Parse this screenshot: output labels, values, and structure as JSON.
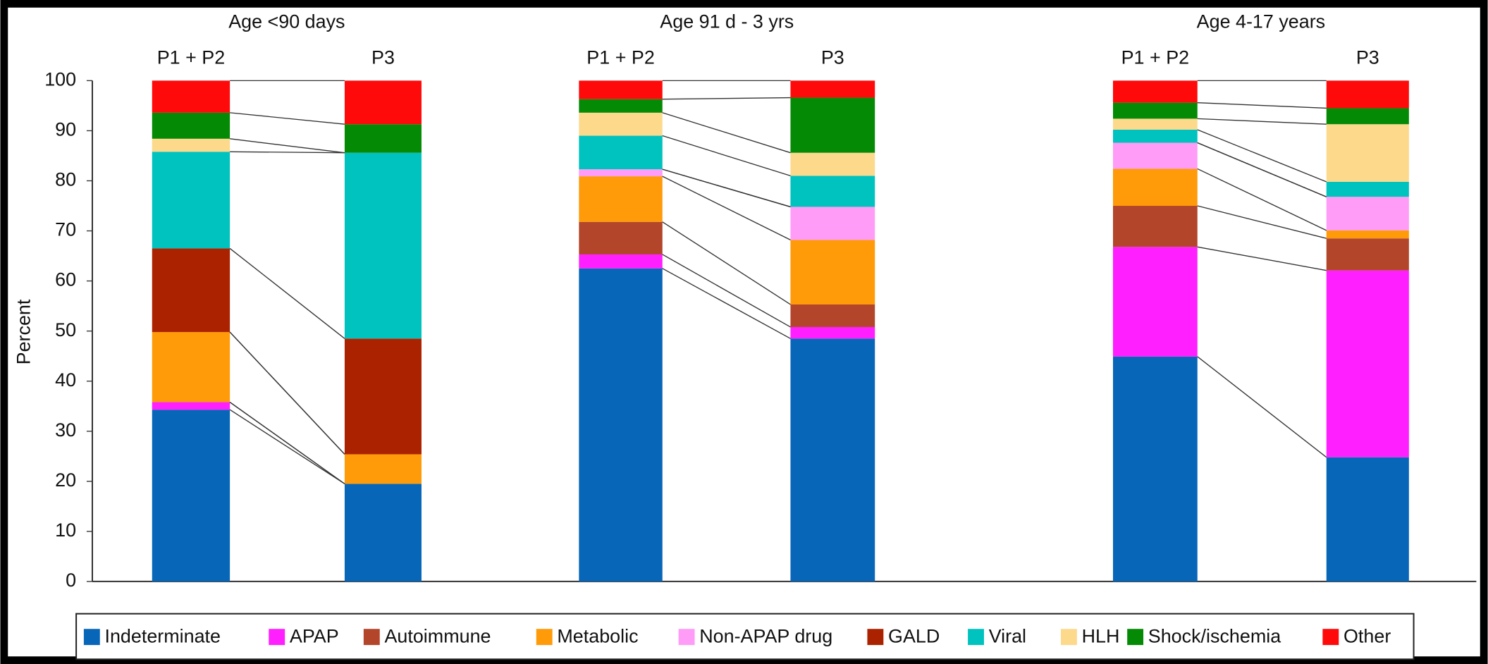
{
  "chart_data": {
    "type": "bar",
    "stacked": true,
    "ylabel": "Percent",
    "groups": [
      "Age <90 days",
      "Age 91 d - 3 yrs",
      "Age 4-17 years"
    ],
    "categories": [
      "P1 + P2",
      "P3",
      "P1 + P2",
      "P3",
      "P1 + P2",
      "P3"
    ],
    "ylim": [
      0,
      100
    ],
    "yticks": [
      0,
      10,
      20,
      30,
      40,
      50,
      60,
      70,
      80,
      90,
      100
    ],
    "series": [
      {
        "name": "Indeterminate",
        "color": "#0866b8",
        "values": [
          34.3,
          19.5,
          62.5,
          48.5,
          44.9,
          24.8
        ]
      },
      {
        "name": "APAP",
        "color": "#ff1fff",
        "values": [
          1.5,
          0,
          2.8,
          2.3,
          21.9,
          37.3
        ]
      },
      {
        "name": "Autoimmune",
        "color": "#b2452a",
        "values": [
          0,
          0,
          6.5,
          4.5,
          8.2,
          6.4
        ]
      },
      {
        "name": "Metabolic",
        "color": "#ff9a08",
        "values": [
          14,
          5.9,
          9.1,
          12.9,
          7.4,
          1.6
        ]
      },
      {
        "name": "Non-APAP drug",
        "color": "#ff9cf8",
        "values": [
          0,
          0,
          1.4,
          6.6,
          5.2,
          6.7
        ]
      },
      {
        "name": "GALD",
        "color": "#ab2200",
        "values": [
          16.7,
          23.1,
          0,
          0,
          0,
          0
        ]
      },
      {
        "name": "Viral",
        "color": "#00c2be",
        "values": [
          19.3,
          37.1,
          6.7,
          6.2,
          2.6,
          3
        ]
      },
      {
        "name": "HLH",
        "color": "#fdd98c",
        "values": [
          2.6,
          0,
          4.6,
          4.6,
          2.2,
          11.5
        ]
      },
      {
        "name": "Shock/ischemia",
        "color": "#058a05",
        "values": [
          5.2,
          5.7,
          2.7,
          11,
          3.2,
          3.2
        ]
      },
      {
        "name": "Other",
        "color": "#ff0a0a",
        "values": [
          6.4,
          8.7,
          3.7,
          3.4,
          4.4,
          5.5
        ]
      }
    ]
  }
}
